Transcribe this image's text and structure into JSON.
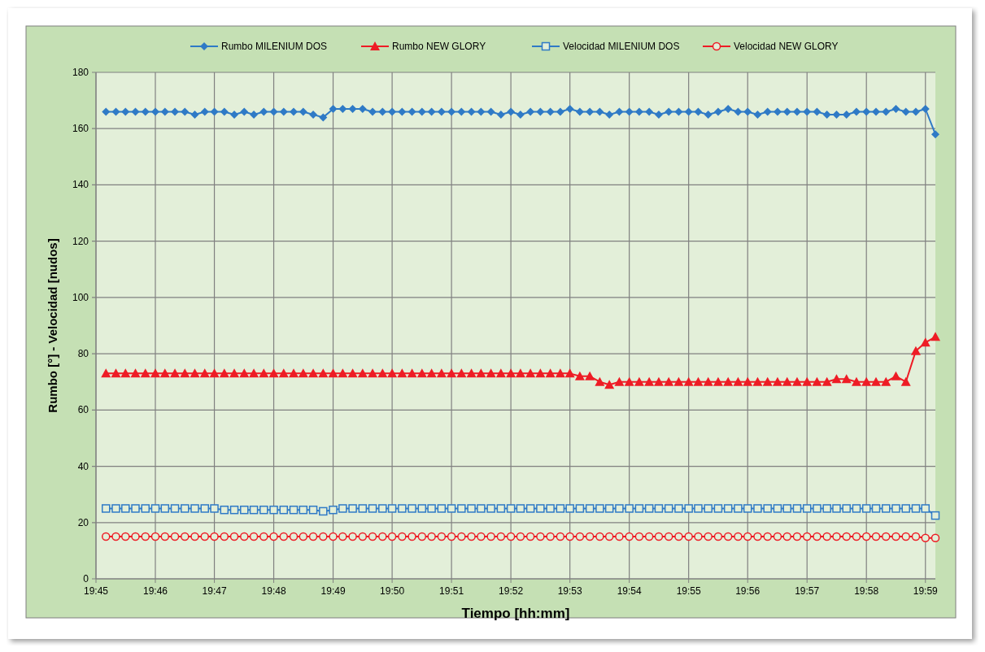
{
  "chart_data": {
    "type": "line",
    "xlabel": "Tiempo [hh:mm]",
    "ylabel": "Rumbo [°] - Velocidad [nudos]",
    "x": [
      19.7528,
      19.7556,
      19.7583,
      19.7611,
      19.7639,
      19.7667,
      19.7694,
      19.7722,
      19.775,
      19.7778,
      19.7806,
      19.7833,
      19.7861,
      19.7889,
      19.7917,
      19.7944,
      19.7972,
      19.8,
      19.8028,
      19.8056,
      19.8083,
      19.8111,
      19.8139,
      19.8167,
      19.8194,
      19.8222,
      19.825,
      19.8278,
      19.8306,
      19.8333,
      19.8361,
      19.8389,
      19.8417,
      19.8444,
      19.8472,
      19.85,
      19.8528,
      19.8556,
      19.8583,
      19.8611,
      19.8639,
      19.8667,
      19.8694,
      19.8722,
      19.875,
      19.8778,
      19.8806,
      19.8833,
      19.8861,
      19.8889,
      19.8917,
      19.8944,
      19.8972,
      19.9,
      19.9028,
      19.9056,
      19.9083,
      19.9111,
      19.9139,
      19.9167,
      19.9194,
      19.9222,
      19.925,
      19.9278,
      19.9306,
      19.9333,
      19.9361,
      19.9389,
      19.9417,
      19.9444,
      19.9472,
      19.95,
      19.9528,
      19.9556,
      19.9583,
      19.9611,
      19.9639,
      19.9667,
      19.9694,
      19.9722,
      19.975,
      19.9778,
      19.9806,
      19.9833,
      19.9861
    ],
    "series": [
      {
        "name": "Rumbo MILENIUM DOS",
        "color": "#2f7ac6",
        "marker": "diamond",
        "values": [
          166,
          166,
          166,
          166,
          166,
          166,
          166,
          166,
          166,
          165,
          166,
          166,
          166,
          165,
          166,
          165,
          166,
          166,
          166,
          166,
          166,
          165,
          164,
          167,
          167,
          167,
          167,
          166,
          166,
          166,
          166,
          166,
          166,
          166,
          166,
          166,
          166,
          166,
          166,
          166,
          165,
          166,
          165,
          166,
          166,
          166,
          166,
          167,
          166,
          166,
          166,
          165,
          166,
          166,
          166,
          166,
          165,
          166,
          166,
          166,
          166,
          165,
          166,
          167,
          166,
          166,
          165,
          166,
          166,
          166,
          166,
          166,
          166,
          165,
          165,
          165,
          166,
          166,
          166,
          166,
          167,
          166,
          166,
          167,
          158
        ]
      },
      {
        "name": "Rumbo NEW GLORY",
        "color": "#ee1c25",
        "marker": "triangle",
        "values": [
          73,
          73,
          73,
          73,
          73,
          73,
          73,
          73,
          73,
          73,
          73,
          73,
          73,
          73,
          73,
          73,
          73,
          73,
          73,
          73,
          73,
          73,
          73,
          73,
          73,
          73,
          73,
          73,
          73,
          73,
          73,
          73,
          73,
          73,
          73,
          73,
          73,
          73,
          73,
          73,
          73,
          73,
          73,
          73,
          73,
          73,
          73,
          73,
          72,
          72,
          70,
          69,
          70,
          70,
          70,
          70,
          70,
          70,
          70,
          70,
          70,
          70,
          70,
          70,
          70,
          70,
          70,
          70,
          70,
          70,
          70,
          70,
          70,
          70,
          71,
          71,
          70,
          70,
          70,
          70,
          72,
          70,
          81,
          84,
          86
        ]
      },
      {
        "name": "Velocidad MILENIUM DOS",
        "color": "#2f7ac6",
        "marker": "square",
        "values": [
          25,
          25,
          25,
          25,
          25,
          25,
          25,
          25,
          25,
          25,
          25,
          25,
          24.5,
          24.5,
          24.5,
          24.5,
          24.5,
          24.5,
          24.5,
          24.5,
          24.5,
          24.5,
          24,
          24.5,
          25,
          25,
          25,
          25,
          25,
          25,
          25,
          25,
          25,
          25,
          25,
          25,
          25,
          25,
          25,
          25,
          25,
          25,
          25,
          25,
          25,
          25,
          25,
          25,
          25,
          25,
          25,
          25,
          25,
          25,
          25,
          25,
          25,
          25,
          25,
          25,
          25,
          25,
          25,
          25,
          25,
          25,
          25,
          25,
          25,
          25,
          25,
          25,
          25,
          25,
          25,
          25,
          25,
          25,
          25,
          25,
          25,
          25,
          25,
          25,
          22.5
        ]
      },
      {
        "name": "Velocidad NEW GLORY",
        "color": "#ee1c25",
        "marker": "circle",
        "values": [
          15,
          15,
          15,
          15,
          15,
          15,
          15,
          15,
          15,
          15,
          15,
          15,
          15,
          15,
          15,
          15,
          15,
          15,
          15,
          15,
          15,
          15,
          15,
          15,
          15,
          15,
          15,
          15,
          15,
          15,
          15,
          15,
          15,
          15,
          15,
          15,
          15,
          15,
          15,
          15,
          15,
          15,
          15,
          15,
          15,
          15,
          15,
          15,
          15,
          15,
          15,
          15,
          15,
          15,
          15,
          15,
          15,
          15,
          15,
          15,
          15,
          15,
          15,
          15,
          15,
          15,
          15,
          15,
          15,
          15,
          15,
          15,
          15,
          15,
          15,
          15,
          15,
          15,
          15,
          15,
          15,
          15,
          15,
          14.5,
          14.5
        ]
      }
    ],
    "xlim": [
      19.75,
      19.9861
    ],
    "xticks": [
      {
        "value": 19.75,
        "label": "19:45"
      },
      {
        "value": 19.7667,
        "label": "19:46"
      },
      {
        "value": 19.7833,
        "label": "19:47"
      },
      {
        "value": 19.8,
        "label": "19:48"
      },
      {
        "value": 19.8167,
        "label": "19:49"
      },
      {
        "value": 19.8333,
        "label": "19:50"
      },
      {
        "value": 19.85,
        "label": "19:51"
      },
      {
        "value": 19.8667,
        "label": "19:52"
      },
      {
        "value": 19.8833,
        "label": "19:53"
      },
      {
        "value": 19.9,
        "label": "19:54"
      },
      {
        "value": 19.9167,
        "label": "19:55"
      },
      {
        "value": 19.9333,
        "label": "19:56"
      },
      {
        "value": 19.95,
        "label": "19:57"
      },
      {
        "value": 19.9667,
        "label": "19:58"
      },
      {
        "value": 19.9833,
        "label": "19:59"
      }
    ],
    "ylim": [
      0,
      180
    ],
    "yticks": [
      0,
      20,
      40,
      60,
      80,
      100,
      120,
      140,
      160,
      180
    ],
    "grid": true,
    "legend": "top",
    "line_style": "solid"
  }
}
